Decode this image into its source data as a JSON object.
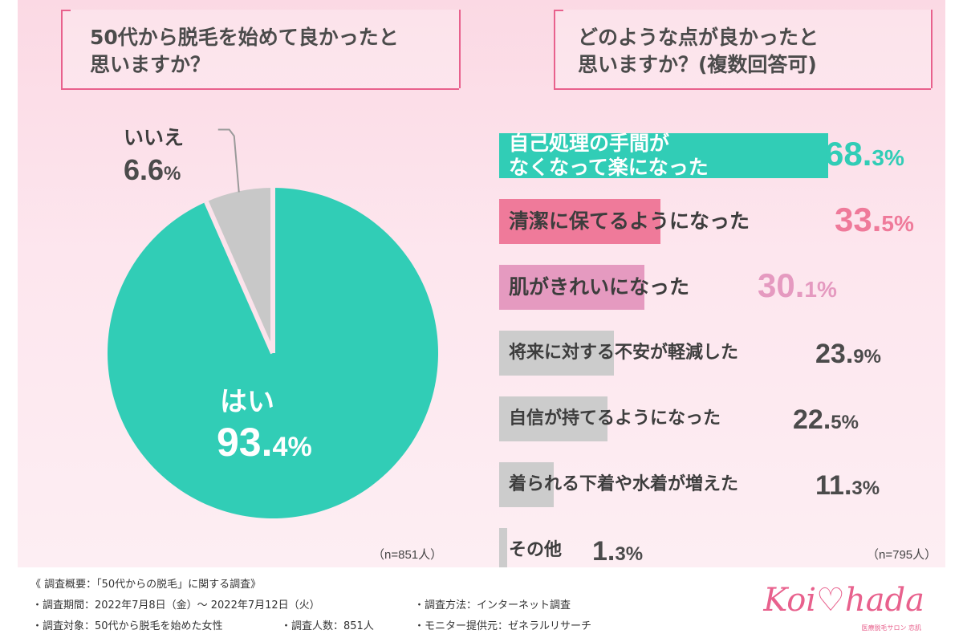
{
  "left": {
    "question_lines": [
      "50代から脱毛を始めて良かったと",
      "思いますか？"
    ],
    "n": "（n=851人）"
  },
  "right": {
    "question_lines": [
      "どのような点が良かったと",
      "思いますか？(複数回答可)"
    ],
    "n": "（n=795人）"
  },
  "chart_data": [
    {
      "type": "pie",
      "categories": [
        "はい",
        "いいえ"
      ],
      "values": [
        93.4,
        6.6
      ],
      "labels": {
        "yes": {
          "name": "はい",
          "num": "93.",
          "small": "4",
          "pct": "%"
        },
        "no": {
          "name": "いいえ",
          "num": "6.6",
          "pct": "%"
        }
      },
      "colors": [
        "#31cdb6",
        "#c8c8c8"
      ]
    },
    {
      "type": "bar",
      "orientation": "horizontal",
      "xlim": [
        0,
        100
      ],
      "items": [
        {
          "label_lines": [
            "自己処理の手間が",
            "なくなって楽になった"
          ],
          "value": 68.3,
          "num": "68.",
          "small": "3",
          "pct": "%",
          "color": "#31cdb6"
        },
        {
          "label_lines": [
            "清潔に保てるようになった"
          ],
          "value": 33.5,
          "num": "33.",
          "small": "5",
          "pct": "%",
          "color": "#ef7a9a"
        },
        {
          "label_lines": [
            "肌がきれいになった"
          ],
          "value": 30.1,
          "num": "30.",
          "small": "1",
          "pct": "%",
          "color": "#e59ac0"
        },
        {
          "label_lines": [
            "将来に対する不安が軽減した"
          ],
          "value": 23.9,
          "num": "23.",
          "small": "9",
          "pct": "%",
          "color": "#cccccc"
        },
        {
          "label_lines": [
            "自信が持てるようになった"
          ],
          "value": 22.5,
          "num": "22.",
          "small": "5",
          "pct": "%",
          "color": "#cccccc"
        },
        {
          "label_lines": [
            "着られる下着や水着が増えた"
          ],
          "value": 11.3,
          "num": "11.",
          "small": "3",
          "pct": "%",
          "color": "#cccccc"
        },
        {
          "label_lines": [
            "その他"
          ],
          "value": 1.3,
          "num": "1.",
          "small": "3",
          "pct": "%",
          "color": "#cccccc"
        }
      ]
    }
  ],
  "footer": {
    "overview": "《 調査概要：「50代からの脱毛」に関する調査》",
    "period": "・調査期間：2022年7月8日（金）～ 2022年7月12日（火）",
    "target": "・調査対象：50代から脱毛を始めた女性",
    "count": "・調査人数：851人",
    "method": "・調査方法：インターネット調査",
    "provider": "・モニター提供元：ゼネラルリサーチ",
    "logo": "Koi♡hada",
    "logo_sub": "医療脱毛サロン 恋肌"
  }
}
